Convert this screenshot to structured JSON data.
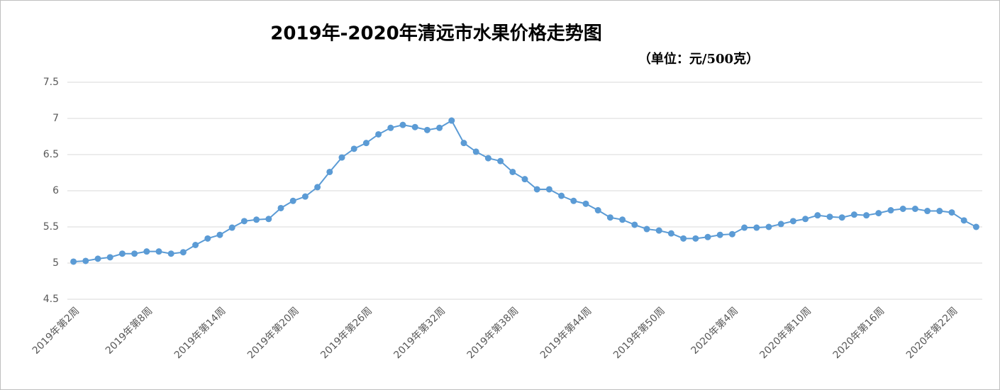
{
  "chart_data": {
    "type": "line",
    "title": "2019年-2020年清远市水果价格走势图",
    "subtitle": "（单位：元/500克）",
    "categories": [
      "2019年第2周",
      null,
      null,
      null,
      null,
      null,
      "2019年第8周",
      null,
      null,
      null,
      null,
      null,
      "2019年第14周",
      null,
      null,
      null,
      null,
      null,
      "2019年第20周",
      null,
      null,
      null,
      null,
      null,
      "2019年第26周",
      null,
      null,
      null,
      null,
      null,
      "2019年第32周",
      null,
      null,
      null,
      null,
      null,
      "2019年第38周",
      null,
      null,
      null,
      null,
      null,
      "2019年第44周",
      null,
      null,
      null,
      null,
      null,
      "2019年第50周",
      null,
      null,
      null,
      null,
      null,
      "2020年第4周",
      null,
      null,
      null,
      null,
      null,
      "2020年第10周",
      null,
      null,
      null,
      null,
      null,
      "2020年第16周",
      null,
      null,
      null,
      null,
      null,
      "2020年第22周",
      null,
      null
    ],
    "values": [
      5.02,
      5.03,
      5.06,
      5.08,
      5.13,
      5.13,
      5.16,
      5.16,
      5.13,
      5.15,
      5.25,
      5.34,
      5.39,
      5.49,
      5.58,
      5.6,
      5.61,
      5.76,
      5.86,
      5.92,
      6.05,
      6.26,
      6.46,
      6.58,
      6.66,
      6.78,
      6.87,
      6.91,
      6.88,
      6.84,
      6.87,
      6.97,
      6.66,
      6.54,
      6.45,
      6.41,
      6.26,
      6.16,
      6.02,
      6.02,
      5.93,
      5.86,
      5.82,
      5.73,
      5.63,
      5.6,
      5.53,
      5.47,
      5.45,
      5.41,
      5.34,
      5.34,
      5.36,
      5.39,
      5.4,
      5.49,
      5.49,
      5.5,
      5.54,
      5.58,
      5.61,
      5.66,
      5.64,
      5.63,
      5.67,
      5.66,
      5.69,
      5.73,
      5.75,
      5.75,
      5.72,
      5.72,
      5.7,
      5.59,
      5.5
    ],
    "color": "#5b9bd5",
    "ylim": [
      4.5,
      7.5
    ],
    "yticks": [
      4.5,
      5,
      5.5,
      6,
      6.5,
      7,
      7.5
    ],
    "grid": true
  }
}
